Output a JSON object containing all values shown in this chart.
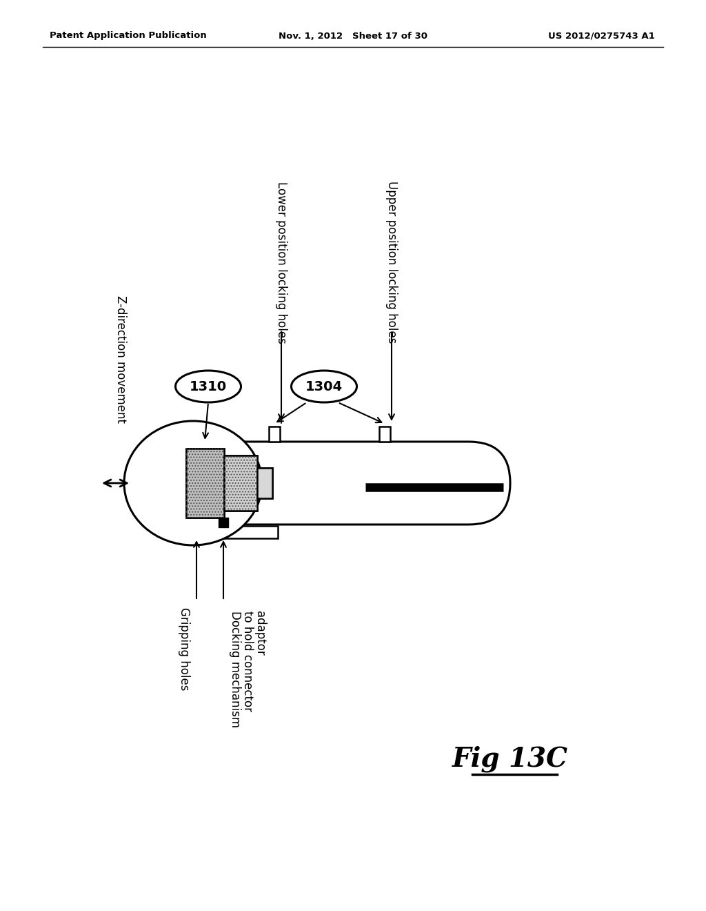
{
  "bg_color": "#ffffff",
  "header_left": "Patent Application Publication",
  "header_mid": "Nov. 1, 2012   Sheet 17 of 30",
  "header_right": "US 2012/0275743 A1",
  "fig_label": "Fig 13C",
  "label_1310": "1310",
  "label_1304": "1304",
  "label_z_direction": "Z-direction movement",
  "label_lower": "Lower position locking holes",
  "label_upper": "Upper position locking holes",
  "label_gripping": "Gripping holes",
  "label_docking_1": "Docking mechanism",
  "label_docking_2": "to hold connector",
  "label_docking_3": "adaptor"
}
